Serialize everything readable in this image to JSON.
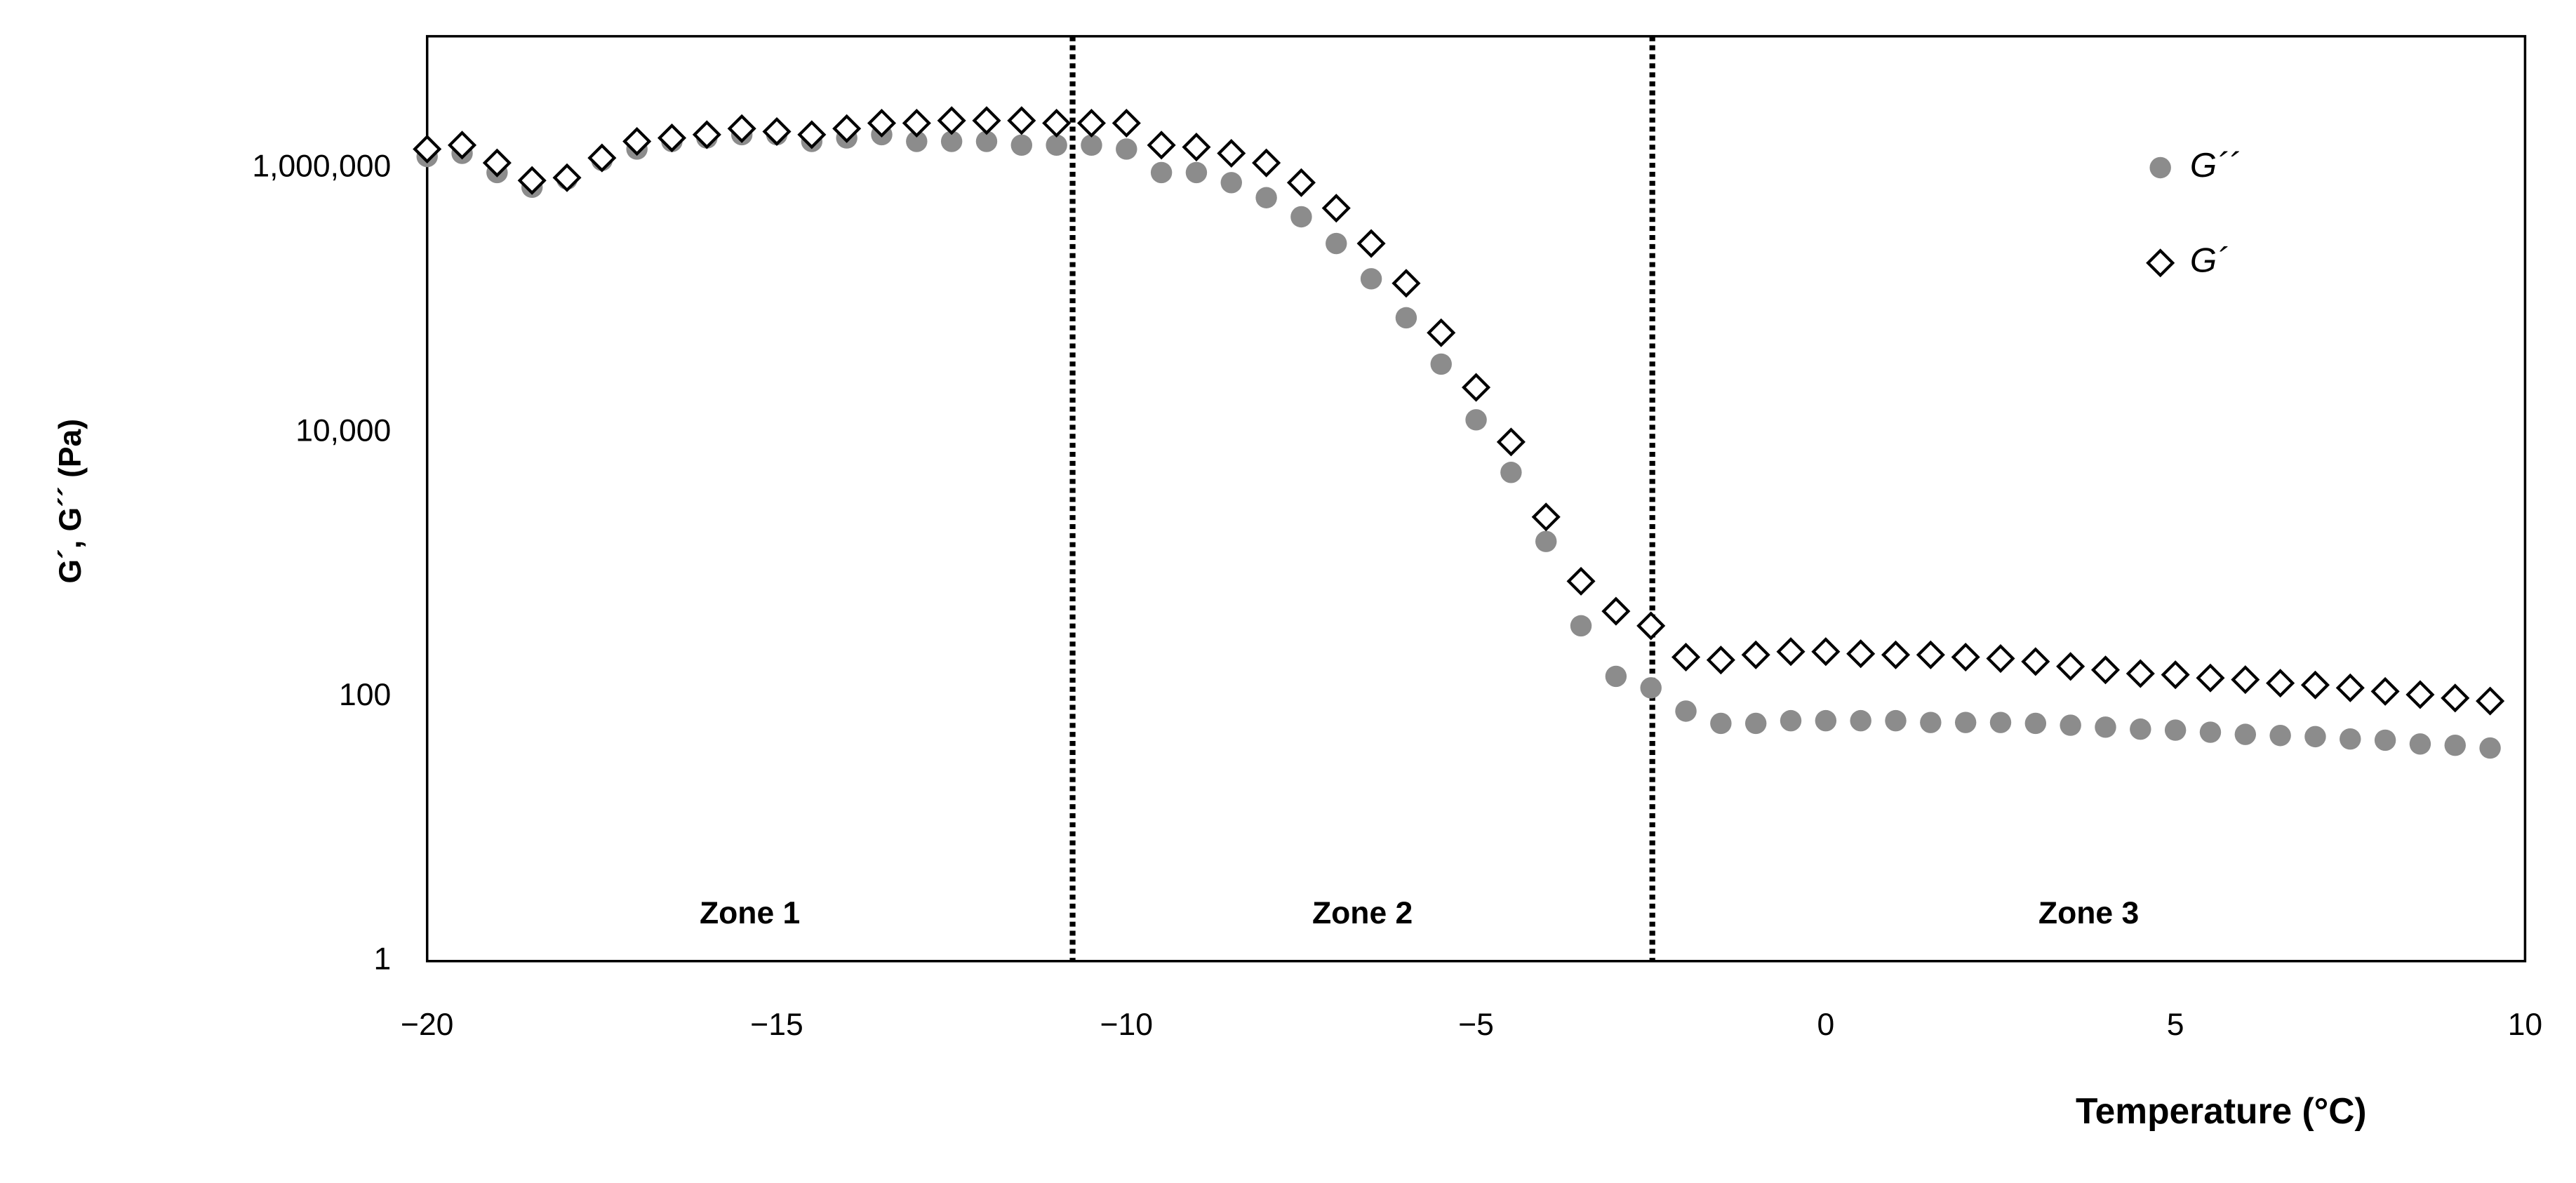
{
  "chart_data": {
    "type": "scatter",
    "x_label": "Temperature (°C)",
    "y_label": "G´, G´´ (Pa)",
    "log_y": true,
    "grid": false,
    "legend_position": "upper-right",
    "xlim": [
      -20,
      10
    ],
    "xticks": [
      {
        "value": -20,
        "label": "−20"
      },
      {
        "value": -15,
        "label": "−15"
      },
      {
        "value": -10,
        "label": "−10"
      },
      {
        "value": -5,
        "label": "−5"
      },
      0,
      5,
      10
    ],
    "ylim": [
      1,
      10000000
    ],
    "yticks": [
      1,
      100,
      {
        "value": 10000,
        "label": "10,000"
      },
      {
        "value": 1000000,
        "label": "1,000,000"
      }
    ],
    "zone_boundaries": [
      -10.77,
      -2.48
    ],
    "zone_labels": [
      "Zone 1",
      "Zone 2",
      "Zone 3"
    ],
    "x": [
      -20,
      -19.5,
      -19,
      -18.5,
      -18,
      -17.5,
      -17,
      -16.5,
      -16,
      -15.5,
      -15,
      -14.5,
      -14,
      -13.5,
      -13,
      -12.5,
      -12,
      -11.5,
      -11,
      -10.5,
      -10,
      -9.5,
      -9,
      -8.5,
      -8,
      -7.5,
      -7,
      -6.5,
      -6,
      -5.5,
      -5,
      -4.5,
      -4,
      -3.5,
      -3,
      -2.5,
      -2,
      -1.5,
      -1,
      -0.5,
      0,
      0.5,
      1,
      1.5,
      2,
      2.5,
      3,
      3.5,
      4,
      4.5,
      5,
      5.5,
      6,
      6.5,
      7,
      7.5,
      8,
      8.5,
      9,
      9.5
    ],
    "series": [
      {
        "name": "G´´",
        "color": "#8c8c8c",
        "marker": "circle",
        "values": [
          1230000,
          1300000,
          930000,
          720000,
          830000,
          1150000,
          1400000,
          1600000,
          1700000,
          1800000,
          1800000,
          1600000,
          1700000,
          1800000,
          1600000,
          1600000,
          1600000,
          1500000,
          1500000,
          1500000,
          1400000,
          930000,
          930000,
          780000,
          600000,
          430000,
          270000,
          146000,
          74000,
          33000,
          12500,
          5000,
          1500,
          345,
          143,
          117,
          78,
          63,
          63,
          66,
          66,
          66,
          66,
          64,
          64,
          64,
          63,
          61,
          59,
          57,
          56,
          54,
          52,
          51,
          50,
          48,
          47,
          44,
          43,
          41
        ]
      },
      {
        "name": "G´",
        "color": "#000000",
        "marker": "diamond",
        "values": [
          1400000,
          1500000,
          1100000,
          810000,
          850000,
          1200000,
          1600000,
          1700000,
          1800000,
          2000000,
          1900000,
          1800000,
          2000000,
          2200000,
          2200000,
          2300000,
          2300000,
          2300000,
          2200000,
          2200000,
          2200000,
          1500000,
          1450000,
          1300000,
          1100000,
          780000,
          500000,
          270000,
          135000,
          57000,
          22000,
          8500,
          2300,
          750,
          445,
          345,
          200,
          190,
          208,
          220,
          220,
          212,
          208,
          208,
          200,
          195,
          185,
          170,
          160,
          150,
          147,
          139,
          135,
          127,
          123,
          117,
          110,
          104,
          98,
          93
        ]
      }
    ]
  }
}
